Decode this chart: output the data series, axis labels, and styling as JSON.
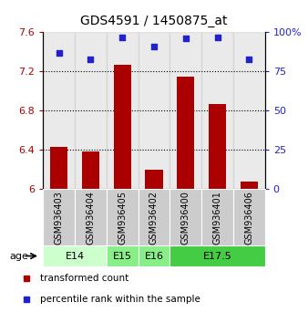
{
  "title": "GDS4591 / 1450875_at",
  "samples": [
    "GSM936403",
    "GSM936404",
    "GSM936405",
    "GSM936402",
    "GSM936400",
    "GSM936401",
    "GSM936406"
  ],
  "transformed_count": [
    6.43,
    6.38,
    7.27,
    6.2,
    7.15,
    6.87,
    6.08
  ],
  "percentile_rank": [
    87,
    83,
    97,
    91,
    96,
    97,
    83
  ],
  "ylim_left": [
    6.0,
    7.6
  ],
  "ylim_right": [
    0,
    100
  ],
  "yticks_left": [
    6.0,
    6.4,
    6.8,
    7.2,
    7.6
  ],
  "yticks_right": [
    0,
    25,
    50,
    75,
    100
  ],
  "ytick_labels_left": [
    "6",
    "6.4",
    "6.8",
    "7.2",
    "7.6"
  ],
  "ytick_labels_right": [
    "0",
    "25",
    "50",
    "75",
    "100%"
  ],
  "bar_color": "#aa0000",
  "dot_color": "#2222cc",
  "age_groups": [
    {
      "label": "E14",
      "samples": [
        "GSM936403",
        "GSM936404"
      ],
      "color": "#ccffcc"
    },
    {
      "label": "E15",
      "samples": [
        "GSM936405"
      ],
      "color": "#88ee88"
    },
    {
      "label": "E16",
      "samples": [
        "GSM936402"
      ],
      "color": "#88ee88"
    },
    {
      "label": "E17.5",
      "samples": [
        "GSM936400",
        "GSM936401",
        "GSM936406"
      ],
      "color": "#44cc44"
    }
  ],
  "age_label": "age",
  "legend_items": [
    {
      "color": "#aa0000",
      "label": "transformed count"
    },
    {
      "color": "#2222cc",
      "label": "percentile rank within the sample"
    }
  ],
  "hlines": [
    6.4,
    6.8,
    7.2
  ],
  "title_fontsize": 10,
  "tick_fontsize": 8,
  "sample_label_fontsize": 7
}
